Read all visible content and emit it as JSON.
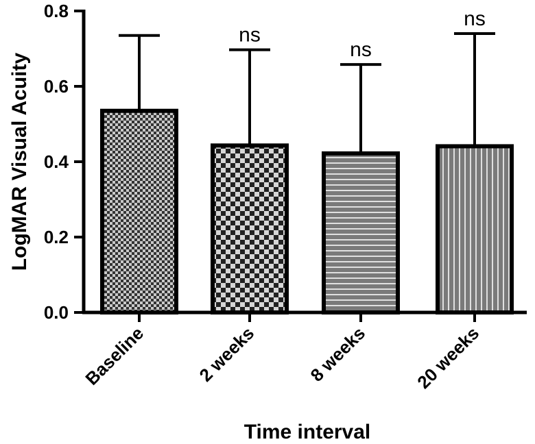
{
  "chart_data": {
    "type": "bar",
    "ylabel": "LogMAR Visual Acuity",
    "xlabel": "Time interval",
    "ylim": [
      0,
      0.8
    ],
    "yticks": [
      "0.0",
      "0.2",
      "0.4",
      "0.6",
      "0.8"
    ],
    "grid": false,
    "categories": [
      "Baseline",
      "2 weeks",
      "8 weeks",
      "20 weeks"
    ],
    "values": [
      0.535,
      0.443,
      0.422,
      0.441
    ],
    "error_upper": [
      0.735,
      0.697,
      0.658,
      0.74
    ],
    "annotations": [
      "",
      "ns",
      "ns",
      "ns"
    ],
    "patterns": [
      "fine-checker",
      "coarse-checker",
      "horizontal-stripes",
      "vertical-stripes"
    ],
    "colors": {
      "bar_fill": "#777777",
      "ink": "#000000",
      "light": "#d8d8d8"
    }
  }
}
